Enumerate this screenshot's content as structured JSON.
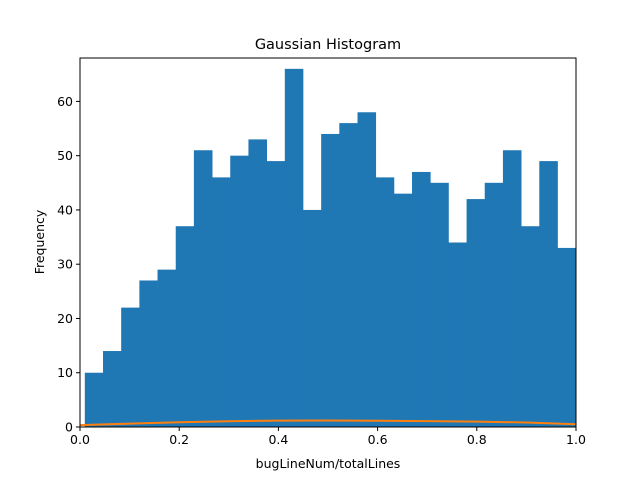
{
  "chart_data": {
    "type": "bar",
    "title": "Gaussian Histogram",
    "xlabel": "bugLineNum/totalLines",
    "ylabel": "Frequency",
    "xlim": [
      0.0,
      1.0
    ],
    "ylim": [
      0,
      68
    ],
    "grid": false,
    "bar_color": "#1f77b4",
    "curve_color": "#ff7f0e",
    "bins": {
      "edges": [
        0.0097,
        0.0464,
        0.083,
        0.1197,
        0.1563,
        0.193,
        0.2296,
        0.2663,
        0.3029,
        0.3396,
        0.3762,
        0.4129,
        0.4495,
        0.4862,
        0.5228,
        0.5595,
        0.5961,
        0.6328,
        0.6694,
        0.7061,
        0.7427,
        0.7794,
        0.816,
        0.8527,
        0.8893,
        0.926,
        0.9626,
        1.0
      ],
      "counts": [
        10,
        14,
        22,
        27,
        29,
        37,
        51,
        46,
        50,
        53,
        49,
        66,
        40,
        54,
        56,
        58,
        46,
        43,
        47,
        45,
        34,
        42,
        45,
        51,
        37,
        49,
        33
      ]
    },
    "curve": {
      "x": [
        0.0,
        0.1,
        0.2,
        0.3,
        0.4,
        0.5,
        0.6,
        0.7,
        0.8,
        0.9,
        1.0
      ],
      "y": [
        0.35,
        0.62,
        0.88,
        1.06,
        1.18,
        1.2,
        1.16,
        1.08,
        1.0,
        0.82,
        0.5
      ]
    },
    "x_ticks": [
      0.0,
      0.2,
      0.4,
      0.6,
      0.8,
      1.0
    ],
    "x_tick_labels": [
      "0.0",
      "0.2",
      "0.4",
      "0.6",
      "0.8",
      "1.0"
    ],
    "y_ticks": [
      0,
      10,
      20,
      30,
      40,
      50,
      60
    ],
    "y_tick_labels": [
      "0",
      "10",
      "20",
      "30",
      "40",
      "50",
      "60"
    ]
  }
}
